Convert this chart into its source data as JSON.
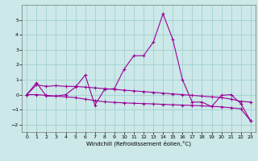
{
  "xlabel": "Windchill (Refroidissement éolien,°C)",
  "x": [
    0,
    1,
    2,
    3,
    4,
    5,
    6,
    7,
    8,
    9,
    10,
    11,
    12,
    13,
    14,
    15,
    16,
    17,
    18,
    19,
    20,
    21,
    22,
    23
  ],
  "line1": [
    0.0,
    0.8,
    -0.1,
    -0.1,
    0.0,
    0.5,
    1.3,
    -0.7,
    0.35,
    0.4,
    1.7,
    2.6,
    2.6,
    3.5,
    5.4,
    3.7,
    1.0,
    -0.5,
    -0.5,
    -0.8,
    -0.05,
    0.0,
    -0.6,
    -1.75
  ],
  "line2": [
    0.0,
    0.65,
    0.55,
    0.6,
    0.55,
    0.55,
    0.5,
    0.45,
    0.4,
    0.35,
    0.3,
    0.25,
    0.2,
    0.15,
    0.1,
    0.05,
    0.0,
    -0.05,
    -0.1,
    -0.15,
    -0.2,
    -0.3,
    -0.45,
    -0.5
  ],
  "line3": [
    0.0,
    0.0,
    -0.05,
    -0.1,
    -0.15,
    -0.2,
    -0.3,
    -0.4,
    -0.48,
    -0.52,
    -0.55,
    -0.58,
    -0.6,
    -0.62,
    -0.65,
    -0.68,
    -0.7,
    -0.72,
    -0.75,
    -0.78,
    -0.82,
    -0.88,
    -0.95,
    -1.75
  ],
  "ylim": [
    -2.5,
    6.0
  ],
  "xlim": [
    -0.5,
    23.5
  ],
  "yticks": [
    -2,
    -1,
    0,
    1,
    2,
    3,
    4,
    5
  ],
  "xticks": [
    0,
    1,
    2,
    3,
    4,
    5,
    6,
    7,
    8,
    9,
    10,
    11,
    12,
    13,
    14,
    15,
    16,
    17,
    18,
    19,
    20,
    21,
    22,
    23
  ],
  "line_color": "#990099",
  "bg_color": "#cce8e8",
  "grid_color": "#99cccc",
  "marker": "+"
}
